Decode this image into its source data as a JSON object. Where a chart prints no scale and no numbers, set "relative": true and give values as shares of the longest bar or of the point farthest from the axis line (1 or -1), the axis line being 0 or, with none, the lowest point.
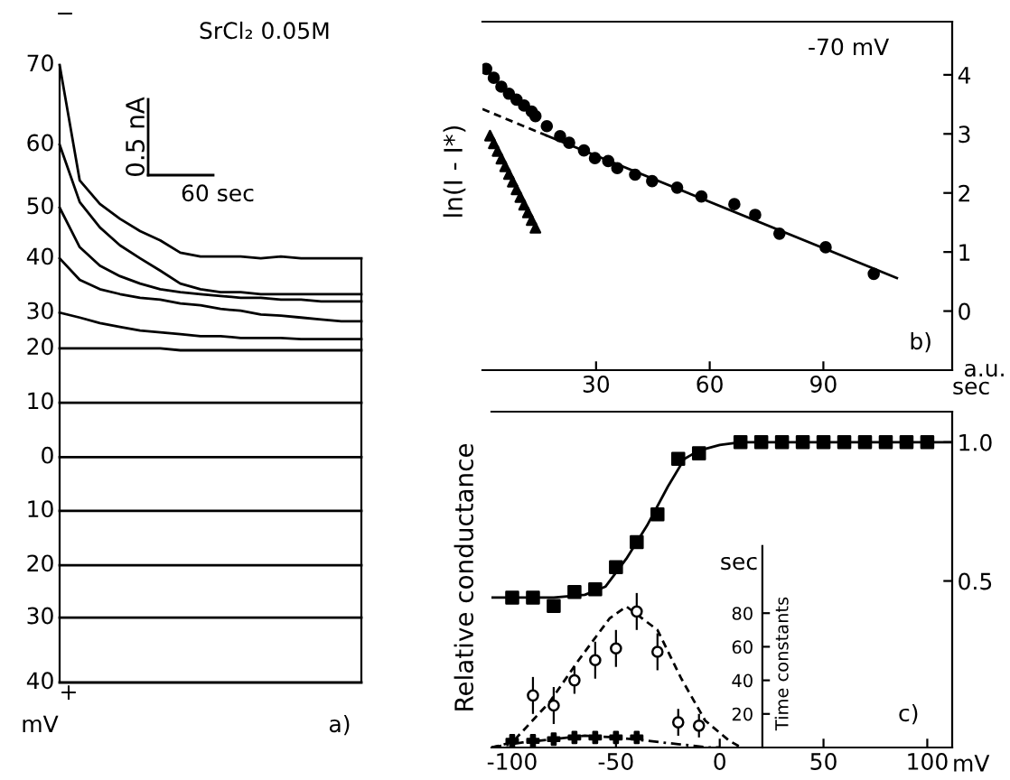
{
  "chart_data": [
    {
      "type": "line",
      "relative": true,
      "categories": [
        null,
        null,
        null,
        null,
        null,
        null,
        null,
        null,
        null,
        null,
        null,
        null,
        null,
        null,
        null,
        null
      ],
      "annotations": [
        "SrCl₂ 0.05M",
        "0.5 nA",
        "60 sec",
        "−",
        "+",
        "mV",
        "a)",
        "70",
        "60",
        "50",
        "40",
        "30",
        "20",
        "10",
        "0",
        "10",
        "20",
        "30",
        "40"
      ],
      "series": [
        {
          "color": "#000000",
          "values": [
            1.0,
            0.813,
            0.775,
            0.751,
            0.731,
            0.716,
            0.696,
            0.69,
            0.69,
            0.69,
            0.687,
            0.69,
            0.687,
            0.687,
            0.687,
            0.687
          ]
        },
        {
          "color": "#000000",
          "values": [
            0.871,
            0.778,
            0.737,
            0.708,
            0.687,
            0.667,
            0.646,
            0.637,
            0.632,
            0.632,
            0.629,
            0.629,
            0.629,
            0.629,
            0.629,
            0.629
          ]
        },
        {
          "color": "#000000",
          "values": [
            0.769,
            0.705,
            0.675,
            0.658,
            0.646,
            0.637,
            0.632,
            0.629,
            0.626,
            0.623,
            0.623,
            0.62,
            0.62,
            0.617,
            0.617,
            0.617
          ]
        },
        {
          "color": "#000000",
          "values": [
            0.687,
            0.652,
            0.637,
            0.629,
            0.623,
            0.62,
            0.614,
            0.611,
            0.605,
            0.602,
            0.596,
            0.594,
            0.591,
            0.588,
            0.585,
            0.585
          ]
        },
        {
          "color": "#000000",
          "values": [
            0.599,
            0.591,
            0.582,
            0.576,
            0.57,
            0.567,
            0.564,
            0.561,
            0.561,
            0.558,
            0.558,
            0.558,
            0.556,
            0.556,
            0.556,
            0.556
          ]
        },
        {
          "color": "#000000",
          "values": [
            0.541,
            0.541,
            0.541,
            0.541,
            0.541,
            0.541,
            0.538,
            0.538,
            0.538,
            0.538,
            0.538,
            0.538,
            0.538,
            0.538,
            0.538,
            0.538
          ]
        },
        {
          "color": "#000000",
          "values": [
            0.453,
            0.453,
            0.453,
            0.453,
            0.453,
            0.453,
            0.453,
            0.453,
            0.453,
            0.453,
            0.453,
            0.453,
            0.453,
            0.453,
            0.453,
            0.453
          ]
        },
        {
          "color": "#000000",
          "values": [
            0.365,
            0.365,
            0.365,
            0.365,
            0.365,
            0.365,
            0.365,
            0.365,
            0.365,
            0.365,
            0.365,
            0.365,
            0.365,
            0.365,
            0.365,
            0.365
          ]
        },
        {
          "color": "#000000",
          "values": [
            0.278,
            0.278,
            0.278,
            0.278,
            0.278,
            0.278,
            0.278,
            0.278,
            0.278,
            0.278,
            0.278,
            0.278,
            0.278,
            0.278,
            0.278,
            0.278
          ]
        },
        {
          "color": "#000000",
          "values": [
            0.19,
            0.19,
            0.19,
            0.19,
            0.19,
            0.19,
            0.19,
            0.19,
            0.19,
            0.19,
            0.19,
            0.19,
            0.19,
            0.19,
            0.19,
            0.19
          ]
        },
        {
          "color": "#000000",
          "values": [
            0.105,
            0.105,
            0.105,
            0.105,
            0.105,
            0.105,
            0.105,
            0.105,
            0.105,
            0.105,
            0.105,
            0.105,
            0.105,
            0.105,
            0.105,
            0.105
          ]
        },
        {
          "color": "#000000",
          "values": [
            0,
            0,
            0,
            0,
            0,
            0,
            0,
            0,
            0,
            0,
            0,
            0,
            0,
            0,
            0,
            0
          ]
        }
      ]
    },
    {
      "type": "scatter",
      "xlabel": "sec",
      "xlim": [
        0,
        124
      ],
      "xticks": [
        30,
        60,
        90
      ],
      "ylim": [
        -1,
        4.9
      ],
      "yticks": [
        0,
        1,
        2,
        3,
        4
      ],
      "annotations": [
        "-70 mV",
        "b)",
        "a.u.",
        "ln(I - I*)"
      ],
      "series": [
        {
          "type": "scatter",
          "marker": "circle",
          "color": "#000000",
          "x": [
            1,
            3,
            5,
            7,
            9,
            11,
            13,
            14,
            17,
            20.5,
            22.9,
            26.8,
            29.7,
            33.2,
            35.6,
            40.3,
            44.8,
            51.4,
            57.8,
            66.5,
            72,
            78.4,
            90.6,
            103.3
          ],
          "values": [
            4.1,
            3.95,
            3.8,
            3.68,
            3.58,
            3.48,
            3.38,
            3.3,
            3.13,
            2.96,
            2.85,
            2.72,
            2.59,
            2.54,
            2.42,
            2.31,
            2.2,
            2.09,
            1.94,
            1.81,
            1.63,
            1.31,
            1.08,
            0.63
          ]
        },
        {
          "type": "scatter",
          "marker": "triangle",
          "color": "#000000",
          "x": [
            2,
            3,
            4,
            5,
            6,
            7,
            8,
            9,
            10,
            11,
            12,
            13,
            14
          ],
          "values": [
            2.97,
            2.84,
            2.71,
            2.58,
            2.45,
            2.32,
            2.19,
            2.06,
            1.93,
            1.8,
            1.67,
            1.54,
            1.41
          ]
        },
        {
          "type": "line",
          "line_style": "dashed",
          "color": "#000000",
          "x": [
            0,
            17
          ],
          "values": [
            3.42,
            2.97
          ]
        },
        {
          "type": "line",
          "line_style": "solid",
          "color": "#000000",
          "x": [
            17,
            109.4
          ],
          "values": [
            2.97,
            0.56
          ]
        }
      ]
    },
    {
      "type": "scatter",
      "xlabel": "mV",
      "y2label": "Time constants",
      "xlim": [
        -110,
        112
      ],
      "xticks": [
        {
          "value": -100,
          "label": "-100"
        },
        {
          "value": -50,
          "label": "-50"
        },
        0,
        50,
        100
      ],
      "ylim": [
        -0.1,
        1.11
      ],
      "yticks": [
        0.5,
        {
          "value": 1,
          "label": "1.0"
        }
      ],
      "y2lim": [
        0,
        200
      ],
      "y2ticks": [
        20,
        40,
        60,
        80
      ],
      "annotations": [
        "c)",
        "sec",
        "Relative conductance"
      ],
      "series": [
        {
          "type": "scatter",
          "marker": "square",
          "color": "#000000",
          "x": [
            -100,
            -90,
            -80,
            -70,
            -60,
            -50,
            -40,
            -30,
            -20,
            -10,
            10,
            20,
            30,
            40,
            50,
            60,
            70,
            80,
            90,
            100
          ],
          "values": [
            0.44,
            0.44,
            0.41,
            0.46,
            0.47,
            0.55,
            0.64,
            0.74,
            0.94,
            0.96,
            1.0,
            1.0,
            1.0,
            1.0,
            1.0,
            1.0,
            1.0,
            1.0,
            1.0,
            1.0
          ]
        },
        {
          "type": "line",
          "line_style": "solid",
          "color": "#000000",
          "x": [
            -110,
            -80,
            -65,
            -55,
            -45,
            -35,
            -25,
            -17,
            -10,
            0,
            10,
            112
          ],
          "values": [
            0.44,
            0.44,
            0.45,
            0.48,
            0.58,
            0.7,
            0.84,
            0.94,
            0.97,
            0.99,
            1.0,
            1.0
          ]
        },
        {
          "type": "scatter",
          "axis": "y2",
          "marker": "circle",
          "color": "#000000",
          "x": [
            -90,
            -80,
            -70,
            -60,
            -50,
            -40,
            -30,
            -20,
            -10
          ],
          "values": [
            31,
            25,
            40,
            52,
            59,
            81,
            57,
            15,
            13
          ],
          "errors": [
            11,
            11,
            8,
            11,
            11,
            11,
            11,
            8,
            7
          ]
        },
        {
          "type": "line",
          "axis": "y2",
          "line_style": "dashed",
          "color": "#000000",
          "x": [
            -110,
            -100,
            -82,
            -68,
            -53,
            -45,
            -30,
            -18.5,
            -7,
            4.6,
            10.4
          ],
          "values": [
            0,
            3,
            27,
            52,
            77,
            84,
            70,
            41,
            16,
            4,
            0
          ]
        },
        {
          "type": "scatter",
          "axis": "y2",
          "marker": "cross",
          "color": "#000000",
          "x": [
            -100,
            -90,
            -80,
            -70,
            -60,
            -50,
            -40
          ],
          "values": [
            4,
            4,
            5,
            6,
            6,
            6,
            6
          ],
          "errors": [
            3,
            3,
            3,
            3,
            3,
            3,
            3
          ]
        },
        {
          "type": "line",
          "axis": "y2",
          "line_style": "dashdot",
          "color": "#000000",
          "x": [
            -110,
            -95,
            -80,
            -65,
            -50,
            -35,
            -20,
            -5,
            0
          ],
          "values": [
            0,
            3,
            5,
            7,
            6,
            4,
            2,
            0,
            0
          ]
        }
      ]
    }
  ]
}
